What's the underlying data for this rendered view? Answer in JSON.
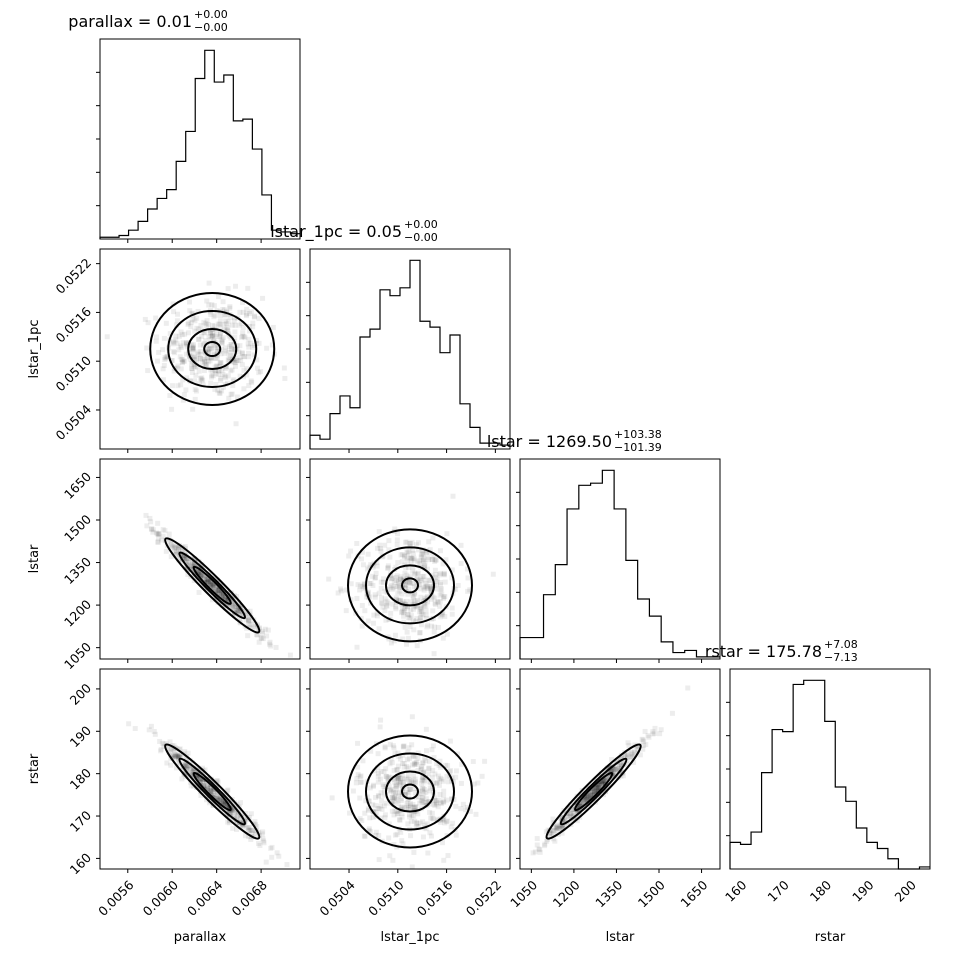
{
  "chart_data": {
    "type": "corner",
    "parameters": [
      "parallax",
      "lstar_1pc",
      "lstar",
      "rstar"
    ],
    "titles": [
      {
        "param": "parallax",
        "median": "0.01",
        "plus": "+0.00",
        "minus": "−0.00"
      },
      {
        "param": "lstar_1pc",
        "median": "0.05",
        "plus": "+0.00",
        "minus": "−0.00"
      },
      {
        "param": "lstar",
        "median": "1269.50",
        "plus": "+103.38",
        "minus": "−101.39"
      },
      {
        "param": "rstar",
        "median": "175.78",
        "plus": "+7.08",
        "minus": "−7.13"
      }
    ],
    "axes": {
      "parallax": {
        "range": [
          0.00535,
          0.00715
        ],
        "ticks": [
          0.0056,
          0.006,
          0.0064,
          0.0068
        ],
        "tick_labels": [
          "0.0056",
          "0.0060",
          "0.0064",
          "0.0068"
        ]
      },
      "lstar_1pc": {
        "range": [
          0.04992,
          0.05238
        ],
        "ticks": [
          0.0504,
          0.051,
          0.0516,
          0.0522
        ],
        "tick_labels": [
          "0.0504",
          "0.0510",
          "0.0516",
          "0.0522"
        ]
      },
      "lstar": {
        "range": [
          1010,
          1715
        ],
        "ticks": [
          1050,
          1200,
          1350,
          1500,
          1650
        ],
        "tick_labels": [
          "1050",
          "1200",
          "1350",
          "1500",
          "1650"
        ]
      },
      "rstar": {
        "range": [
          157.5,
          204.7
        ],
        "ticks": [
          160,
          170,
          180,
          190,
          200
        ],
        "tick_labels": [
          "160",
          "170",
          "180",
          "190",
          "200"
        ]
      }
    },
    "histograms": [
      {
        "param": "parallax",
        "heights": [
          1,
          1,
          2,
          5,
          10,
          17,
          23,
          28,
          44,
          61,
          91,
          107,
          89,
          93,
          67,
          68,
          51,
          25,
          5,
          4,
          3
        ]
      },
      {
        "param": "lstar_1pc",
        "heights": [
          7,
          5,
          18,
          27,
          21,
          57,
          61,
          81,
          78,
          82,
          96,
          65,
          62,
          49,
          58,
          23,
          11,
          3,
          3,
          2
        ]
      },
      {
        "param": "lstar",
        "heights": [
          10,
          10,
          30,
          44,
          70,
          81,
          82,
          88,
          70,
          46,
          28,
          20,
          8,
          3,
          4,
          1,
          1
        ]
      },
      {
        "param": "rstar",
        "heights": [
          13,
          12,
          18,
          47,
          68,
          67,
          90,
          92,
          92,
          72,
          40,
          33,
          20,
          13,
          10,
          5,
          0,
          0,
          1
        ]
      }
    ],
    "joint_medians": {
      "parallax": 0.00636,
      "lstar_1pc": 0.05115,
      "lstar": 1269.5,
      "rstar": 175.78
    },
    "correlations": {
      "lstar_1pc|parallax": 0.0,
      "lstar|parallax": -0.98,
      "lstar|lstar_1pc": 0.0,
      "rstar|parallax": -0.97,
      "rstar|lstar_1pc": 0.0,
      "rstar|lstar": 0.98
    },
    "xlabels": [
      "parallax",
      "lstar_1pc",
      "lstar",
      "rstar"
    ],
    "ylabels": [
      "",
      "lstar_1pc",
      "lstar",
      "rstar"
    ]
  }
}
